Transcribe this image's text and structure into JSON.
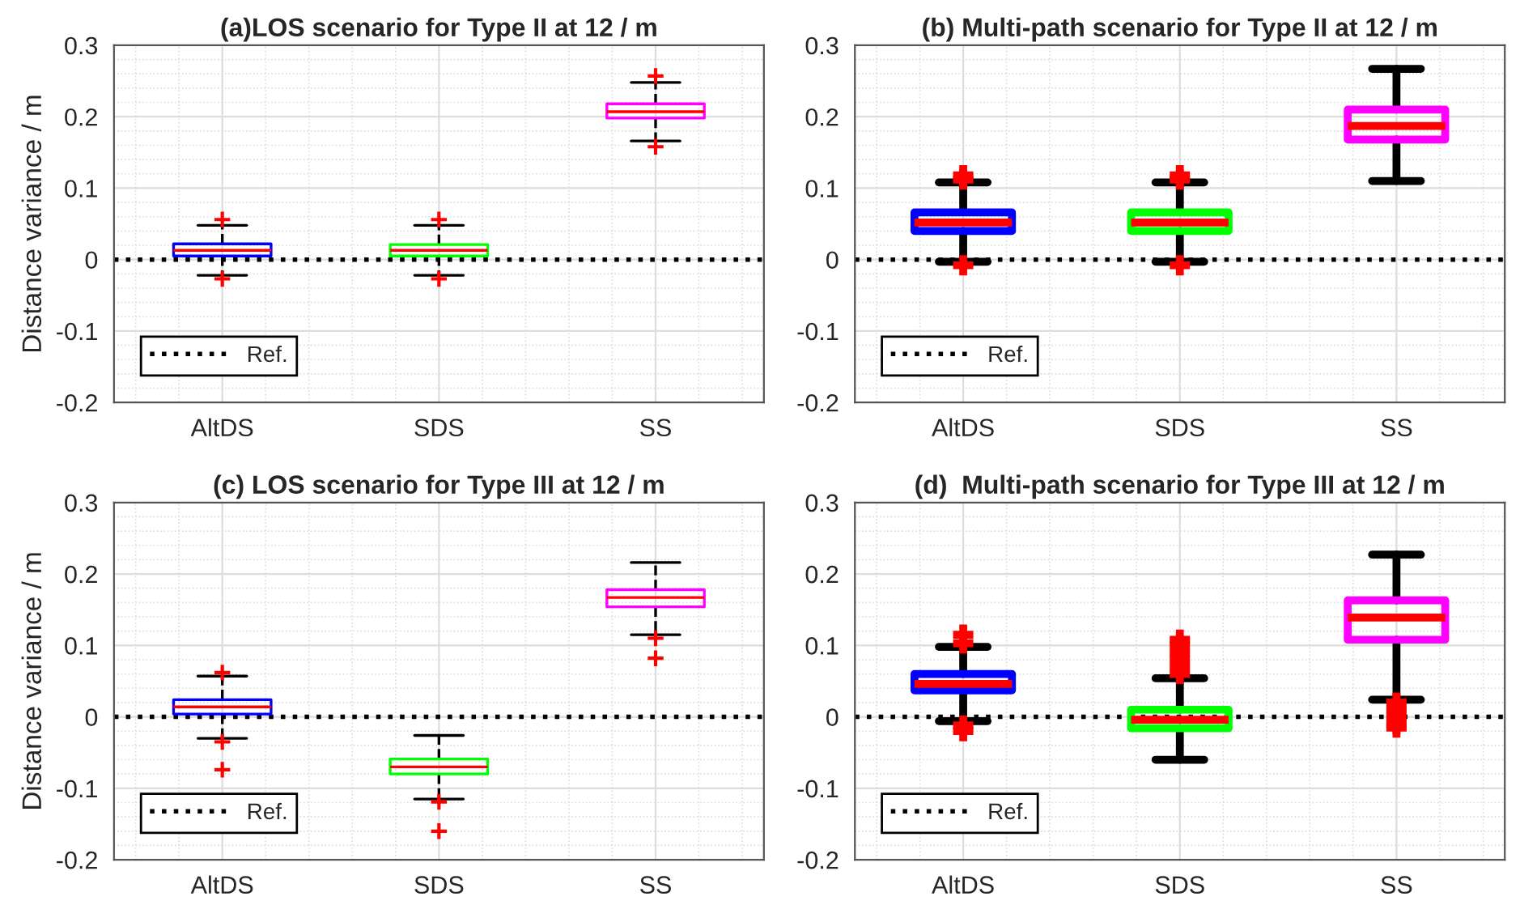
{
  "chart_data": [
    {
      "type": "box",
      "title": "(a)LOS scenario for Type II at 12 / m",
      "ylabel": "Distance variance / m",
      "categories": [
        "AltDS",
        "SDS",
        "SS"
      ],
      "colors": [
        "#0000ff",
        "#00ff00",
        "#ff00ff"
      ],
      "boxes": [
        {
          "low": -0.022,
          "q1": 0.005,
          "median": 0.013,
          "q3": 0.022,
          "high": 0.048,
          "outliers": [
            0.056,
            -0.027
          ]
        },
        {
          "low": -0.022,
          "q1": 0.005,
          "median": 0.013,
          "q3": 0.021,
          "high": 0.048,
          "outliers": [
            0.056,
            -0.027
          ]
        },
        {
          "low": 0.166,
          "q1": 0.198,
          "median": 0.207,
          "q3": 0.218,
          "high": 0.248,
          "outliers": [
            0.257,
            0.158
          ]
        }
      ],
      "ylim": [
        -0.2,
        0.3
      ],
      "yticks": [
        -0.2,
        -0.1,
        0,
        0.1,
        0.2,
        0.3
      ],
      "grid": true,
      "legend": "bottom left",
      "marker": "cross",
      "ref_lines": [
        {
          "axis": "y",
          "value": 0,
          "label": "Ref.",
          "color": "#000000",
          "line_style": "dotted"
        }
      ]
    },
    {
      "type": "box",
      "title": "(b) Multi-path scenario for Type II at 12 / m",
      "categories": [
        "AltDS",
        "SDS",
        "SS"
      ],
      "colors": [
        "#0000ff",
        "#00ff00",
        "#ff00ff"
      ],
      "boxes": [
        {
          "low": -0.003,
          "q1": 0.04,
          "median": 0.052,
          "q3": 0.066,
          "high": 0.108,
          "outliers": [
            0.112,
            0.118,
            -0.008
          ]
        },
        {
          "low": -0.003,
          "q1": 0.04,
          "median": 0.052,
          "q3": 0.066,
          "high": 0.108,
          "outliers": [
            0.112,
            0.118,
            -0.008
          ]
        },
        {
          "low": 0.11,
          "q1": 0.168,
          "median": 0.187,
          "q3": 0.21,
          "high": 0.267
        }
      ],
      "ylim": [
        -0.2,
        0.3
      ],
      "yticks": [
        -0.2,
        -0.1,
        0,
        0.1,
        0.2,
        0.3
      ],
      "grid": true,
      "legend": "bottom left",
      "marker": "cross",
      "ref_lines": [
        {
          "axis": "y",
          "value": 0,
          "label": "Ref.",
          "color": "#000000",
          "line_style": "dotted"
        }
      ]
    },
    {
      "type": "box",
      "title": "(c) LOS scenario for Type III at 12 / m",
      "ylabel": "Distance variance / m",
      "categories": [
        "AltDS",
        "SDS",
        "SS"
      ],
      "colors": [
        "#0000ff",
        "#00ff00",
        "#ff00ff"
      ],
      "boxes": [
        {
          "low": -0.03,
          "q1": 0.004,
          "median": 0.014,
          "q3": 0.024,
          "high": 0.057,
          "outliers": [
            0.062,
            -0.035,
            -0.074
          ]
        },
        {
          "low": -0.115,
          "q1": -0.08,
          "median": -0.07,
          "q3": -0.059,
          "high": -0.026,
          "outliers": [
            -0.119,
            -0.16
          ]
        },
        {
          "low": 0.115,
          "q1": 0.154,
          "median": 0.167,
          "q3": 0.178,
          "high": 0.216,
          "outliers": [
            0.11,
            0.082
          ]
        }
      ],
      "ylim": [
        -0.2,
        0.3
      ],
      "yticks": [
        -0.2,
        -0.1,
        0,
        0.1,
        0.2,
        0.3
      ],
      "grid": true,
      "legend": "bottom left",
      "marker": "cross",
      "ref_lines": [
        {
          "axis": "y",
          "value": 0,
          "label": "Ref.",
          "color": "#000000",
          "line_style": "dotted"
        }
      ]
    },
    {
      "type": "box",
      "title": "(d)  Multi-path scenario for Type III at 12 / m",
      "categories": [
        "AltDS",
        "SDS",
        "SS"
      ],
      "colors": [
        "#0000ff",
        "#00ff00",
        "#ff00ff"
      ],
      "boxes": [
        {
          "low": -0.006,
          "q1": 0.037,
          "median": 0.046,
          "q3": 0.06,
          "high": 0.098,
          "outliers": [
            0.103,
            0.115,
            -0.012,
            -0.02
          ]
        },
        {
          "low": -0.06,
          "q1": -0.016,
          "median": -0.004,
          "q3": 0.01,
          "high": 0.054,
          "outliers": [
            0.06,
            0.07,
            0.08,
            0.09,
            0.1,
            0.108
          ]
        },
        {
          "low": 0.024,
          "q1": 0.108,
          "median": 0.139,
          "q3": 0.163,
          "high": 0.227,
          "outliers": [
            0.02,
            0.01,
            0.0,
            -0.01,
            -0.015
          ]
        }
      ],
      "ylim": [
        -0.2,
        0.3
      ],
      "yticks": [
        -0.2,
        -0.1,
        0,
        0.1,
        0.2,
        0.3
      ],
      "grid": true,
      "legend": "bottom left",
      "marker": "cross",
      "ref_lines": [
        {
          "axis": "y",
          "value": 0,
          "label": "Ref.",
          "color": "#000000",
          "line_style": "dotted"
        }
      ]
    }
  ]
}
